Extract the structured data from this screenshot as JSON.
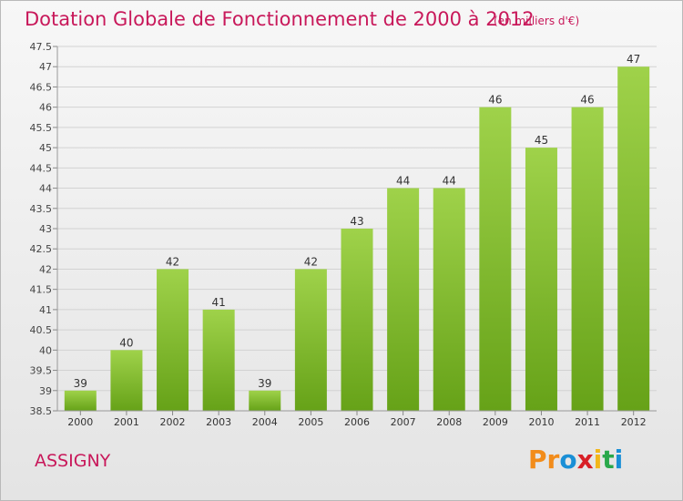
{
  "header": {
    "title": "Dotation Globale de Fonctionnement de 2000 à 2012",
    "subtitle": "(en milliers d'€)"
  },
  "footer": {
    "commune": "ASSIGNY",
    "brand": {
      "letters": [
        "P",
        "r",
        "o",
        "x",
        "i",
        "t",
        "i"
      ],
      "text": "Proxiti"
    }
  },
  "colors": {
    "title": "#c8185a",
    "bar_light": "#9fd24a",
    "bar_dark": "#66a218",
    "brand": [
      "#f28c1a",
      "#f28c1a",
      "#1a8fd6",
      "#d81f26",
      "#f2b61a",
      "#2aa84a",
      "#1a8fd6"
    ]
  },
  "chart_data": {
    "type": "bar",
    "categories": [
      "2000",
      "2001",
      "2002",
      "2003",
      "2004",
      "2005",
      "2006",
      "2007",
      "2008",
      "2009",
      "2010",
      "2011",
      "2012"
    ],
    "values": [
      39,
      40,
      42,
      41,
      39,
      42,
      43,
      44,
      44,
      46,
      45,
      46,
      47
    ],
    "value_labels": [
      "39",
      "40",
      "42",
      "41",
      "39",
      "42",
      "43",
      "44",
      "44",
      "46",
      "45",
      "46",
      "47"
    ],
    "ylim": [
      38.5,
      47.5
    ],
    "yticks": [
      "38.5",
      "39",
      "39.5",
      "40",
      "40.5",
      "41",
      "41.5",
      "42",
      "42.5",
      "43",
      "43.5",
      "44",
      "44.5",
      "45",
      "45.5",
      "46",
      "46.5",
      "47",
      "47.5"
    ],
    "grid": true,
    "xlabel": "",
    "ylabel": ""
  }
}
